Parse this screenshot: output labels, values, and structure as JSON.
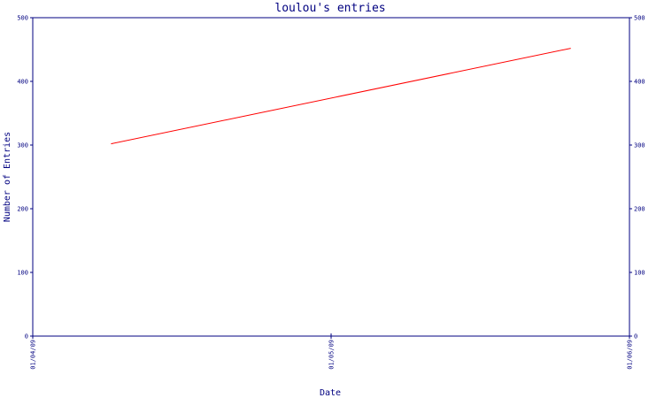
{
  "chart_data": {
    "type": "line",
    "title": "loulou's entries",
    "xlabel": "Date",
    "ylabel": "Number of Entries",
    "x_tick_labels": [
      "01/04/09",
      "01/05/09",
      "01/06/09"
    ],
    "y_tick_labels": [
      "0",
      "100",
      "200",
      "300",
      "400",
      "500"
    ],
    "right_y_tick_labels": [
      "0",
      "100",
      "200",
      "300",
      "400",
      "500"
    ],
    "ylim": [
      0,
      500
    ],
    "grid": false,
    "series": [
      {
        "x": [
          "2009-04-09",
          "2009-05-26"
        ],
        "values": [
          302,
          452
        ],
        "color": "#ff0000"
      }
    ]
  },
  "colors": {
    "axis": "#000080",
    "line": "#ff0000",
    "background": "#ffffff"
  }
}
